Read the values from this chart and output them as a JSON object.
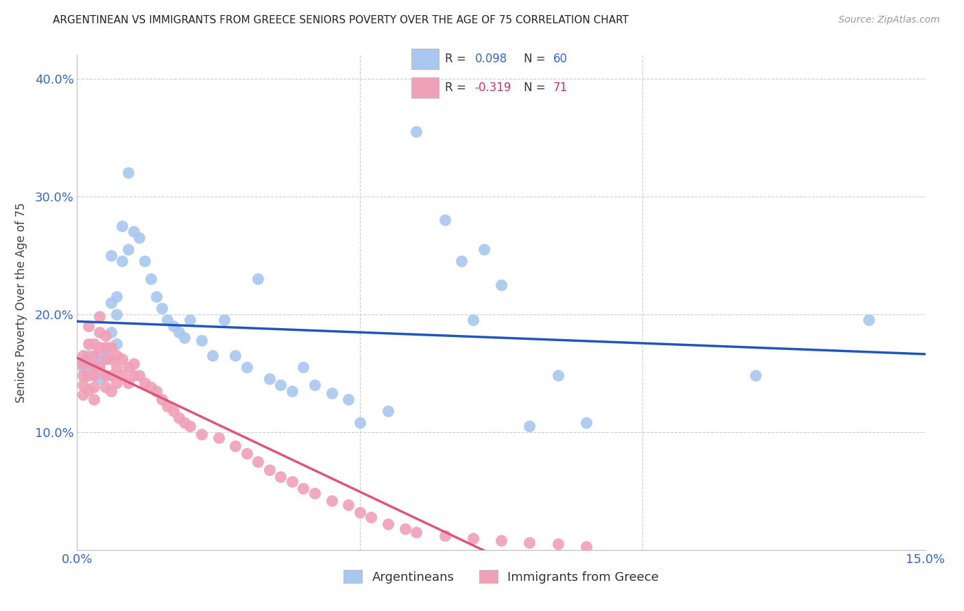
{
  "title": "ARGENTINEAN VS IMMIGRANTS FROM GREECE SENIORS POVERTY OVER THE AGE OF 75 CORRELATION CHART",
  "source": "Source: ZipAtlas.com",
  "ylabel_label": "Seniors Poverty Over the Age of 75",
  "xlim": [
    0.0,
    0.15
  ],
  "ylim": [
    0.0,
    0.42
  ],
  "blue_R": 0.098,
  "blue_N": 60,
  "pink_R": -0.319,
  "pink_N": 71,
  "blue_color": "#a8c8f0",
  "pink_color": "#f0a0b8",
  "blue_line_color": "#2255bb",
  "pink_line_color": "#dd5577",
  "background_color": "#ffffff",
  "grid_color": "#cccccc",
  "blue_scatter_x": [
    0.001,
    0.001,
    0.002,
    0.002,
    0.003,
    0.003,
    0.003,
    0.004,
    0.004,
    0.004,
    0.005,
    0.005,
    0.005,
    0.006,
    0.006,
    0.006,
    0.007,
    0.007,
    0.007,
    0.008,
    0.008,
    0.009,
    0.009,
    0.01,
    0.011,
    0.012,
    0.013,
    0.014,
    0.015,
    0.016,
    0.017,
    0.018,
    0.019,
    0.02,
    0.022,
    0.024,
    0.026,
    0.028,
    0.03,
    0.032,
    0.034,
    0.036,
    0.038,
    0.04,
    0.042,
    0.045,
    0.048,
    0.05,
    0.055,
    0.06,
    0.065,
    0.068,
    0.07,
    0.072,
    0.075,
    0.08,
    0.085,
    0.09,
    0.12,
    0.14
  ],
  "blue_scatter_y": [
    0.16,
    0.155,
    0.165,
    0.158,
    0.162,
    0.158,
    0.15,
    0.165,
    0.158,
    0.145,
    0.17,
    0.162,
    0.148,
    0.25,
    0.21,
    0.185,
    0.215,
    0.2,
    0.175,
    0.275,
    0.245,
    0.32,
    0.255,
    0.27,
    0.265,
    0.245,
    0.23,
    0.215,
    0.205,
    0.195,
    0.19,
    0.185,
    0.18,
    0.195,
    0.178,
    0.165,
    0.195,
    0.165,
    0.155,
    0.23,
    0.145,
    0.14,
    0.135,
    0.155,
    0.14,
    0.133,
    0.128,
    0.108,
    0.118,
    0.355,
    0.28,
    0.245,
    0.195,
    0.255,
    0.225,
    0.105,
    0.148,
    0.108,
    0.148,
    0.195
  ],
  "pink_scatter_x": [
    0.001,
    0.001,
    0.001,
    0.001,
    0.001,
    0.002,
    0.002,
    0.002,
    0.002,
    0.002,
    0.003,
    0.003,
    0.003,
    0.003,
    0.003,
    0.003,
    0.004,
    0.004,
    0.004,
    0.004,
    0.005,
    0.005,
    0.005,
    0.005,
    0.005,
    0.006,
    0.006,
    0.006,
    0.006,
    0.007,
    0.007,
    0.007,
    0.008,
    0.008,
    0.009,
    0.009,
    0.01,
    0.01,
    0.011,
    0.012,
    0.013,
    0.014,
    0.015,
    0.016,
    0.017,
    0.018,
    0.019,
    0.02,
    0.022,
    0.025,
    0.028,
    0.03,
    0.032,
    0.034,
    0.036,
    0.038,
    0.04,
    0.042,
    0.045,
    0.048,
    0.05,
    0.052,
    0.055,
    0.058,
    0.06,
    0.065,
    0.07,
    0.075,
    0.08,
    0.085,
    0.09
  ],
  "pink_scatter_y": [
    0.165,
    0.158,
    0.148,
    0.14,
    0.132,
    0.19,
    0.175,
    0.162,
    0.148,
    0.136,
    0.175,
    0.165,
    0.155,
    0.148,
    0.138,
    0.128,
    0.198,
    0.185,
    0.172,
    0.155,
    0.182,
    0.172,
    0.162,
    0.148,
    0.138,
    0.172,
    0.162,
    0.148,
    0.135,
    0.165,
    0.155,
    0.142,
    0.162,
    0.148,
    0.155,
    0.142,
    0.158,
    0.148,
    0.148,
    0.142,
    0.138,
    0.135,
    0.128,
    0.122,
    0.118,
    0.112,
    0.108,
    0.105,
    0.098,
    0.095,
    0.088,
    0.082,
    0.075,
    0.068,
    0.062,
    0.058,
    0.052,
    0.048,
    0.042,
    0.038,
    0.032,
    0.028,
    0.022,
    0.018,
    0.015,
    0.012,
    0.01,
    0.008,
    0.006,
    0.005,
    0.003
  ]
}
